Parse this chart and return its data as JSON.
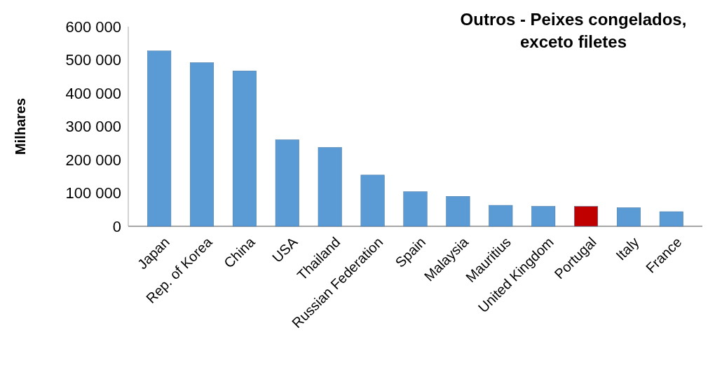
{
  "chart_data": {
    "type": "bar",
    "title": "Outros - Peixes congelados, exceto filetes",
    "ylabel": "Milhares",
    "categories": [
      "Japan",
      "Rep. of Korea",
      "China",
      "USA",
      "Thailand",
      "Russian Federation",
      "Spain",
      "Malaysia",
      "Mauritius",
      "United Kingdom",
      "Portugal",
      "Italy",
      "France"
    ],
    "values": [
      527000,
      492000,
      467000,
      260000,
      237000,
      154000,
      104000,
      90000,
      63000,
      60000,
      60000,
      56000,
      44000
    ],
    "colors": [
      "#5b9bd5",
      "#5b9bd5",
      "#5b9bd5",
      "#5b9bd5",
      "#5b9bd5",
      "#5b9bd5",
      "#5b9bd5",
      "#5b9bd5",
      "#5b9bd5",
      "#5b9bd5",
      "#c00000",
      "#5b9bd5",
      "#5b9bd5"
    ],
    "ylim": [
      0,
      600000
    ],
    "yticks": [
      {
        "value": 0,
        "label": "0"
      },
      {
        "value": 100000,
        "label": "100 000"
      },
      {
        "value": 200000,
        "label": "200 000"
      },
      {
        "value": 300000,
        "label": "300 000"
      },
      {
        "value": 400000,
        "label": "400 000"
      },
      {
        "value": 500000,
        "label": "500 000"
      },
      {
        "value": 600000,
        "label": "600 000"
      }
    ],
    "grid": false
  }
}
